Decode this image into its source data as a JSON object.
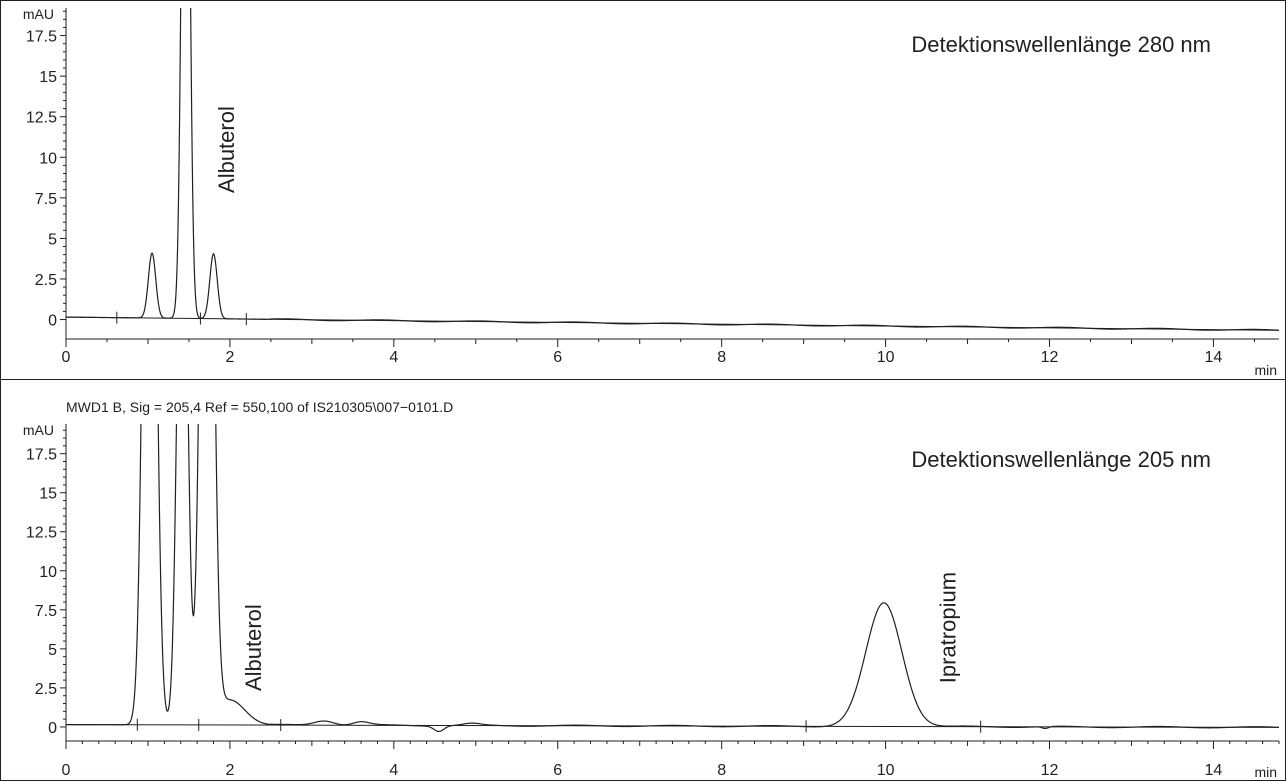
{
  "chart_data": [
    {
      "type": "line",
      "title": "Detektionswellenlänge 280 nm",
      "header": "",
      "ylabel": "mAU",
      "xlabel": "min",
      "xlim": [
        0,
        14.8
      ],
      "ylim": [
        -1.2,
        19.2
      ],
      "xticks": [
        "0",
        "2",
        "4",
        "6",
        "8",
        "10",
        "12",
        "14"
      ],
      "yticks": [
        "0",
        "2.5",
        "5",
        "7.5",
        "10",
        "12.5",
        "15",
        "17.5"
      ],
      "grid": false,
      "annotations": [
        {
          "text": "Albuterol",
          "x": 2.05,
          "y": 7.8
        }
      ],
      "integration_marks": [
        0.62,
        1.64,
        2.2
      ],
      "baseline": {
        "y0": 0.15,
        "slope": -0.055
      },
      "series": [
        {
          "peaks": [
            {
              "rt": 1.05,
              "height": 4.0,
              "width": 0.045
            },
            {
              "rt": 1.46,
              "height": 48.0,
              "width": 0.045
            },
            {
              "rt": 1.8,
              "height": 4.0,
              "width": 0.045
            }
          ]
        }
      ]
    },
    {
      "type": "line",
      "title": "Detektionswellenlänge 205 nm",
      "header": "MWD1 B, Sig = 205,4 Ref = 550,100 of IS210305\\007−0101.D",
      "ylabel": "mAU",
      "xlabel": "min",
      "xlim": [
        0,
        14.8
      ],
      "ylim": [
        -0.9,
        19.4
      ],
      "xticks": [
        "0",
        "2",
        "4",
        "6",
        "8",
        "10",
        "12",
        "14"
      ],
      "yticks": [
        "0",
        "2.5",
        "5",
        "7.5",
        "10",
        "12.5",
        "15",
        "17.5"
      ],
      "grid": false,
      "annotations": [
        {
          "text": "Albuterol",
          "x": 2.38,
          "y": 2.3
        },
        {
          "text": "Ipratropium",
          "x": 10.85,
          "y": 2.8
        }
      ],
      "integration_marks": [
        0.87,
        1.62,
        2.62,
        9.03,
        11.16
      ],
      "baseline": {
        "y0": 0.15,
        "slope": -0.012
      },
      "series": [
        {
          "peaks": [
            {
              "rt": 1.02,
              "height": 60.0,
              "width": 0.07
            },
            {
              "rt": 1.42,
              "height": 40.0,
              "width": 0.06
            },
            {
              "rt": 1.72,
              "height": 60.0,
              "width": 0.07
            },
            {
              "rt": 2.0,
              "height": 1.6,
              "width": 0.18
            },
            {
              "rt": 3.15,
              "height": 0.3,
              "width": 0.12
            },
            {
              "rt": 3.6,
              "height": 0.22,
              "width": 0.1
            },
            {
              "rt": 4.55,
              "height": -0.35,
              "width": 0.06
            },
            {
              "rt": 4.95,
              "height": 0.12,
              "width": 0.1
            },
            {
              "rt": 9.98,
              "height": 7.9,
              "width": 0.22
            },
            {
              "rt": 11.95,
              "height": -0.12,
              "width": 0.04
            }
          ]
        }
      ]
    }
  ]
}
